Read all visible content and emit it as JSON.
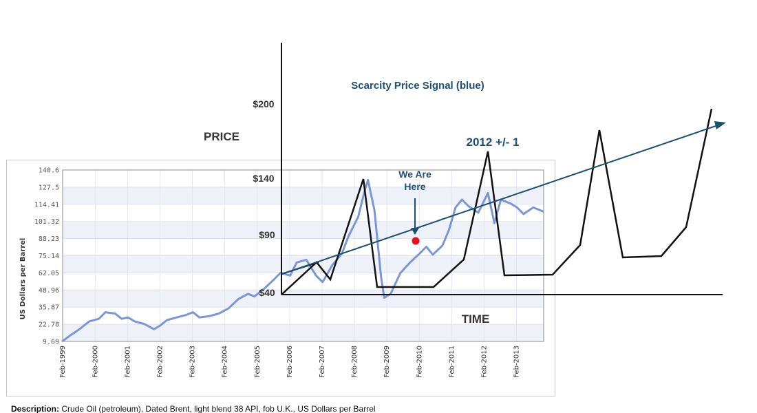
{
  "chart_data": {
    "type": "line",
    "ylabel": "US Dollars per Barrel",
    "ylim": [
      9.69,
      140.6
    ],
    "grid": true,
    "yticks": [
      "140.6",
      "127.5",
      "114.41",
      "101.32",
      "88.23",
      "75.14",
      "62.05",
      "48.96",
      "35.87",
      "22.78",
      "9.69"
    ],
    "xticks": [
      "Feb-1999",
      "Feb-2000",
      "Feb-2001",
      "Feb-2002",
      "Feb-2003",
      "Feb-2004",
      "Feb-2005",
      "Feb-2006",
      "Feb-2007",
      "Feb-2008",
      "Feb-2009",
      "Feb-2010",
      "Feb-2011",
      "Feb-2012",
      "Feb-2013"
    ],
    "xlim": [
      1999.08,
      2013.92
    ],
    "series": [
      {
        "color": "#7b96d6",
        "x": [
          1999.08,
          1999.3,
          1999.6,
          1999.9,
          2000.2,
          2000.4,
          2000.7,
          2000.9,
          2001.1,
          2001.3,
          2001.6,
          2001.9,
          2002.1,
          2002.3,
          2002.6,
          2002.9,
          2003.1,
          2003.3,
          2003.6,
          2003.9,
          2004.2,
          2004.5,
          2004.8,
          2005.0,
          2005.3,
          2005.6,
          2005.8,
          2006.1,
          2006.3,
          2006.6,
          2006.9,
          2007.1,
          2007.4,
          2007.7,
          2007.9,
          2008.2,
          2008.4,
          2008.5,
          2008.7,
          2008.9,
          2009.0,
          2009.2,
          2009.5,
          2009.8,
          2010.1,
          2010.3,
          2010.5,
          2010.8,
          2011.0,
          2011.2,
          2011.4,
          2011.6,
          2011.9,
          2012.2,
          2012.4,
          2012.6,
          2012.9,
          2013.1,
          2013.3,
          2013.6,
          2013.9
        ],
        "y": [
          10,
          14,
          19,
          25,
          27,
          32,
          31,
          27,
          28,
          25,
          23,
          19,
          22,
          26,
          28,
          30,
          32,
          28,
          29,
          31,
          35,
          42,
          46,
          44,
          50,
          57,
          62,
          60,
          70,
          72,
          60,
          55,
          68,
          77,
          90,
          105,
          125,
          133,
          110,
          60,
          43,
          46,
          62,
          70,
          77,
          82,
          76,
          83,
          95,
          112,
          118,
          113,
          108,
          123,
          100,
          118,
          115,
          112,
          107,
          112,
          109
        ]
      }
    ]
  },
  "overlay": {
    "yaxis_labels": [
      "$200",
      "$140",
      "$90",
      "$40"
    ],
    "price_label": "PRICE",
    "time_label": "TIME",
    "title": "Scarcity Price Signal (blue)",
    "forecast_label": "2012 +/- 1",
    "marker_label_line1": "We Are",
    "marker_label_line2": "Here",
    "line_color": "#111111",
    "arrow_color": "#1b4f72",
    "dot_color": "#e8101a"
  },
  "description": {
    "label": "Description:",
    "text": "Crude Oil (petroleum), Dated Brent, light blend 38 API, fob U.K., US Dollars per Barrel"
  }
}
